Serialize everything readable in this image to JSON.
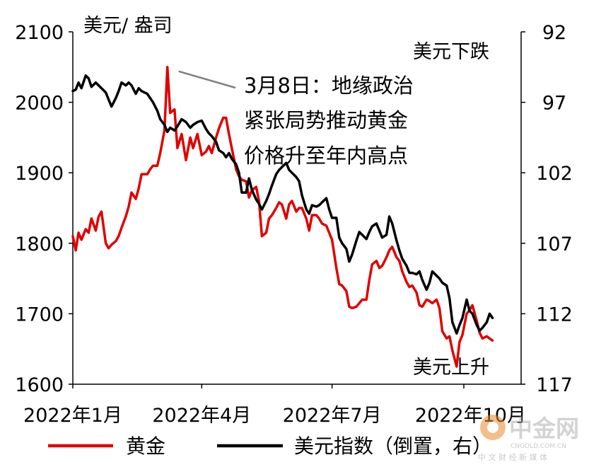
{
  "chart_data": {
    "type": "line",
    "left_axis_title": "美元/ 盎司",
    "left_ylim": [
      1600,
      2100
    ],
    "left_ticks": [
      1600,
      1700,
      1800,
      1900,
      2000,
      2100
    ],
    "right_ylim": [
      117,
      92
    ],
    "right_ticks": [
      92,
      97,
      102,
      107,
      112,
      117
    ],
    "right_axis_inverted": true,
    "right_top_note": "美元下跌",
    "right_bottom_note": "美元上升",
    "x_tick_labels": [
      "2022年1月",
      "2022年4月",
      "2022年7月",
      "2022年10月"
    ],
    "x_tick_dates": [
      "2022-01-01",
      "2022-04-01",
      "2022-07-01",
      "2022-10-01"
    ],
    "annotation": {
      "lines": [
        "3月8日：地缘政治",
        "紧张局势推动黄金",
        "价格升至年内高点"
      ],
      "target_date": "2022-03-08",
      "target_value": 2050
    },
    "series": [
      {
        "name": "黄金",
        "axis": "left",
        "color": "#e00000",
        "dates": [
          "2022-01-01",
          "2022-01-03",
          "2022-01-05",
          "2022-01-07",
          "2022-01-10",
          "2022-01-12",
          "2022-01-14",
          "2022-01-17",
          "2022-01-19",
          "2022-01-21",
          "2022-01-24",
          "2022-01-26",
          "2022-01-28",
          "2022-01-31",
          "2022-02-02",
          "2022-02-04",
          "2022-02-07",
          "2022-02-09",
          "2022-02-11",
          "2022-02-14",
          "2022-02-16",
          "2022-02-18",
          "2022-02-22",
          "2022-02-24",
          "2022-02-26",
          "2022-03-01",
          "2022-03-03",
          "2022-03-06",
          "2022-03-08",
          "2022-03-10",
          "2022-03-13",
          "2022-03-15",
          "2022-03-18",
          "2022-03-21",
          "2022-03-24",
          "2022-03-26",
          "2022-03-29",
          "2022-04-01",
          "2022-04-04",
          "2022-04-06",
          "2022-04-08",
          "2022-04-11",
          "2022-04-13",
          "2022-04-16",
          "2022-04-18",
          "2022-04-20",
          "2022-04-22",
          "2022-04-25",
          "2022-04-27",
          "2022-04-29",
          "2022-05-02",
          "2022-05-04",
          "2022-05-06",
          "2022-05-09",
          "2022-05-11",
          "2022-05-13",
          "2022-05-16",
          "2022-05-18",
          "2022-05-20",
          "2022-05-23",
          "2022-05-25",
          "2022-05-27",
          "2022-05-30",
          "2022-06-01",
          "2022-06-03",
          "2022-06-06",
          "2022-06-08",
          "2022-06-10",
          "2022-06-13",
          "2022-06-15",
          "2022-06-17",
          "2022-06-20",
          "2022-06-22",
          "2022-06-24",
          "2022-06-27",
          "2022-06-29",
          "2022-07-01",
          "2022-07-04",
          "2022-07-06",
          "2022-07-08",
          "2022-07-11",
          "2022-07-13",
          "2022-07-15",
          "2022-07-18",
          "2022-07-20",
          "2022-07-22",
          "2022-07-25",
          "2022-07-27",
          "2022-07-29",
          "2022-08-01",
          "2022-08-03",
          "2022-08-05",
          "2022-08-08",
          "2022-08-10",
          "2022-08-12",
          "2022-08-15",
          "2022-08-17",
          "2022-08-19",
          "2022-08-22",
          "2022-08-24",
          "2022-08-26",
          "2022-08-29",
          "2022-08-31",
          "2022-09-02",
          "2022-09-05",
          "2022-09-07",
          "2022-09-09",
          "2022-09-12",
          "2022-09-14",
          "2022-09-16",
          "2022-09-19",
          "2022-09-21",
          "2022-09-23",
          "2022-09-26",
          "2022-09-28",
          "2022-09-30",
          "2022-10-03",
          "2022-10-05",
          "2022-10-07",
          "2022-10-10",
          "2022-10-12",
          "2022-10-14",
          "2022-10-17",
          "2022-10-19",
          "2022-10-21"
        ],
        "values": [
          1810,
          1790,
          1815,
          1805,
          1820,
          1815,
          1835,
          1818,
          1838,
          1845,
          1800,
          1793,
          1798,
          1803,
          1810,
          1822,
          1838,
          1852,
          1872,
          1863,
          1878,
          1898,
          1898,
          1905,
          1910,
          1910,
          1928,
          1960,
          2050,
          1985,
          1990,
          1935,
          1955,
          1918,
          1950,
          1935,
          1955,
          1925,
          1930,
          1938,
          1928,
          1950,
          1963,
          1978,
          1978,
          1955,
          1935,
          1905,
          1895,
          1890,
          1888,
          1865,
          1875,
          1880,
          1860,
          1810,
          1815,
          1835,
          1840,
          1850,
          1858,
          1855,
          1835,
          1855,
          1860,
          1845,
          1850,
          1850,
          1835,
          1818,
          1840,
          1840,
          1835,
          1828,
          1825,
          1815,
          1805,
          1765,
          1742,
          1740,
          1732,
          1710,
          1708,
          1710,
          1715,
          1720,
          1720,
          1748,
          1770,
          1775,
          1765,
          1768,
          1780,
          1790,
          1795,
          1780,
          1775,
          1760,
          1745,
          1738,
          1740,
          1730,
          1712,
          1710,
          1720,
          1718,
          1715,
          1720,
          1708,
          1675,
          1665,
          1668,
          1648,
          1625,
          1660,
          1670,
          1700,
          1705,
          1712,
          1690,
          1673,
          1665,
          1668,
          1665,
          1662
        ]
      },
      {
        "name": "美元指数（倒置，右）",
        "axis": "right",
        "color": "#000000",
        "dates": [
          "2022-01-01",
          "2022-01-03",
          "2022-01-05",
          "2022-01-07",
          "2022-01-10",
          "2022-01-12",
          "2022-01-14",
          "2022-01-17",
          "2022-01-19",
          "2022-01-21",
          "2022-01-24",
          "2022-01-26",
          "2022-01-28",
          "2022-01-31",
          "2022-02-02",
          "2022-02-04",
          "2022-02-07",
          "2022-02-09",
          "2022-02-11",
          "2022-02-14",
          "2022-02-16",
          "2022-02-18",
          "2022-02-22",
          "2022-02-24",
          "2022-02-26",
          "2022-03-01",
          "2022-03-03",
          "2022-03-06",
          "2022-03-08",
          "2022-03-10",
          "2022-03-13",
          "2022-03-15",
          "2022-03-18",
          "2022-03-21",
          "2022-03-24",
          "2022-03-26",
          "2022-03-29",
          "2022-04-01",
          "2022-04-04",
          "2022-04-06",
          "2022-04-08",
          "2022-04-11",
          "2022-04-13",
          "2022-04-16",
          "2022-04-18",
          "2022-04-20",
          "2022-04-22",
          "2022-04-25",
          "2022-04-27",
          "2022-04-29",
          "2022-05-02",
          "2022-05-04",
          "2022-05-06",
          "2022-05-09",
          "2022-05-11",
          "2022-05-13",
          "2022-05-16",
          "2022-05-18",
          "2022-05-20",
          "2022-05-23",
          "2022-05-25",
          "2022-05-27",
          "2022-05-30",
          "2022-06-01",
          "2022-06-03",
          "2022-06-06",
          "2022-06-08",
          "2022-06-10",
          "2022-06-13",
          "2022-06-15",
          "2022-06-17",
          "2022-06-20",
          "2022-06-22",
          "2022-06-24",
          "2022-06-27",
          "2022-06-29",
          "2022-07-01",
          "2022-07-04",
          "2022-07-06",
          "2022-07-08",
          "2022-07-11",
          "2022-07-13",
          "2022-07-15",
          "2022-07-18",
          "2022-07-20",
          "2022-07-22",
          "2022-07-25",
          "2022-07-27",
          "2022-07-29",
          "2022-08-01",
          "2022-08-03",
          "2022-08-05",
          "2022-08-08",
          "2022-08-10",
          "2022-08-12",
          "2022-08-15",
          "2022-08-17",
          "2022-08-19",
          "2022-08-22",
          "2022-08-24",
          "2022-08-26",
          "2022-08-29",
          "2022-08-31",
          "2022-09-02",
          "2022-09-05",
          "2022-09-07",
          "2022-09-09",
          "2022-09-12",
          "2022-09-14",
          "2022-09-16",
          "2022-09-19",
          "2022-09-21",
          "2022-09-23",
          "2022-09-26",
          "2022-09-28",
          "2022-09-30",
          "2022-10-03",
          "2022-10-05",
          "2022-10-07",
          "2022-10-10",
          "2022-10-12",
          "2022-10-14",
          "2022-10-17",
          "2022-10-19",
          "2022-10-21"
        ],
        "values": [
          96.2,
          96.1,
          95.6,
          96.0,
          95.1,
          95.3,
          95.9,
          95.6,
          95.8,
          96.0,
          96.3,
          96.8,
          97.3,
          96.7,
          96.2,
          95.6,
          95.8,
          95.6,
          95.8,
          96.4,
          96.0,
          96.2,
          96.4,
          96.7,
          97.0,
          97.6,
          98.2,
          98.6,
          99.1,
          98.8,
          99.0,
          98.7,
          98.2,
          98.4,
          98.8,
          98.6,
          98.4,
          98.3,
          98.9,
          99.2,
          99.4,
          99.8,
          100.4,
          100.6,
          100.9,
          100.6,
          101.0,
          101.4,
          102.0,
          103.4,
          103.4,
          102.4,
          103.2,
          103.9,
          104.2,
          104.6,
          104.0,
          103.5,
          102.9,
          102.1,
          101.8,
          101.6,
          101.3,
          101.8,
          102.0,
          102.3,
          102.6,
          103.6,
          104.6,
          104.9,
          104.3,
          104.4,
          104.3,
          104.1,
          103.8,
          104.6,
          105.2,
          105.2,
          106.6,
          107.0,
          107.4,
          108.3,
          107.8,
          106.8,
          106.2,
          106.4,
          106.7,
          106.2,
          105.8,
          105.6,
          106.1,
          106.6,
          106.4,
          105.1,
          105.6,
          106.8,
          107.5,
          108.1,
          108.6,
          109.1,
          109.1,
          109.2,
          109.0,
          109.6,
          110.3,
          109.8,
          109.0,
          109.3,
          109.5,
          109.8,
          110.0,
          110.9,
          112.6,
          113.4,
          112.8,
          112.3,
          111.0,
          111.8,
          112.0,
          112.8,
          113.2,
          113.0,
          112.6,
          112.0,
          112.3
        ]
      }
    ]
  },
  "legend": {
    "items": [
      {
        "label": "黄金",
        "color": "#e00000"
      },
      {
        "label": "美元指数（倒置，右）",
        "color": "#000000"
      }
    ]
  },
  "watermark": {
    "logo_text": "中金网",
    "url": "CNGOLD.COM.CN",
    "tagline": "中 文 财 经 新 媒 体"
  }
}
